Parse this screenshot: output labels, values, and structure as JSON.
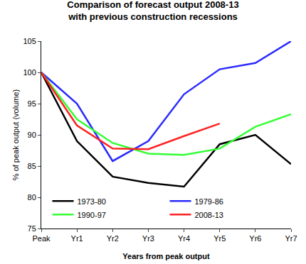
{
  "chart_data": {
    "type": "line",
    "title": "Comparison of forecast output 2008-13 with previous construction recessions",
    "x_label": "Years from peak output",
    "y_label": "% of peak output (volume)",
    "categories": [
      "Peak",
      "Yr1",
      "Yr2",
      "Yr3",
      "Yr4",
      "Yr5",
      "Yr6",
      "Yr7"
    ],
    "series": [
      {
        "name": "1973-80",
        "color": "#000000",
        "values": [
          100,
          89,
          83.3,
          82.3,
          81.7,
          88.5,
          90,
          85.3
        ]
      },
      {
        "name": "1979-86",
        "color": "#2a2aff",
        "values": [
          100,
          95,
          85.8,
          89,
          96.5,
          100.5,
          101.5,
          105
        ]
      },
      {
        "name": "1990-97",
        "color": "#33ff33",
        "values": [
          100,
          92.5,
          88.7,
          87,
          86.8,
          87.8,
          91.3,
          93.3
        ]
      },
      {
        "name": "2008-13",
        "color": "#ff2222",
        "values": [
          100,
          91.5,
          87.8,
          87.7,
          89.8,
          91.8,
          null,
          null
        ]
      }
    ],
    "ylim": [
      75,
      105
    ],
    "yticks": [
      75,
      80,
      85,
      90,
      95,
      100,
      105
    ],
    "grid": false,
    "legend": "bottom"
  }
}
